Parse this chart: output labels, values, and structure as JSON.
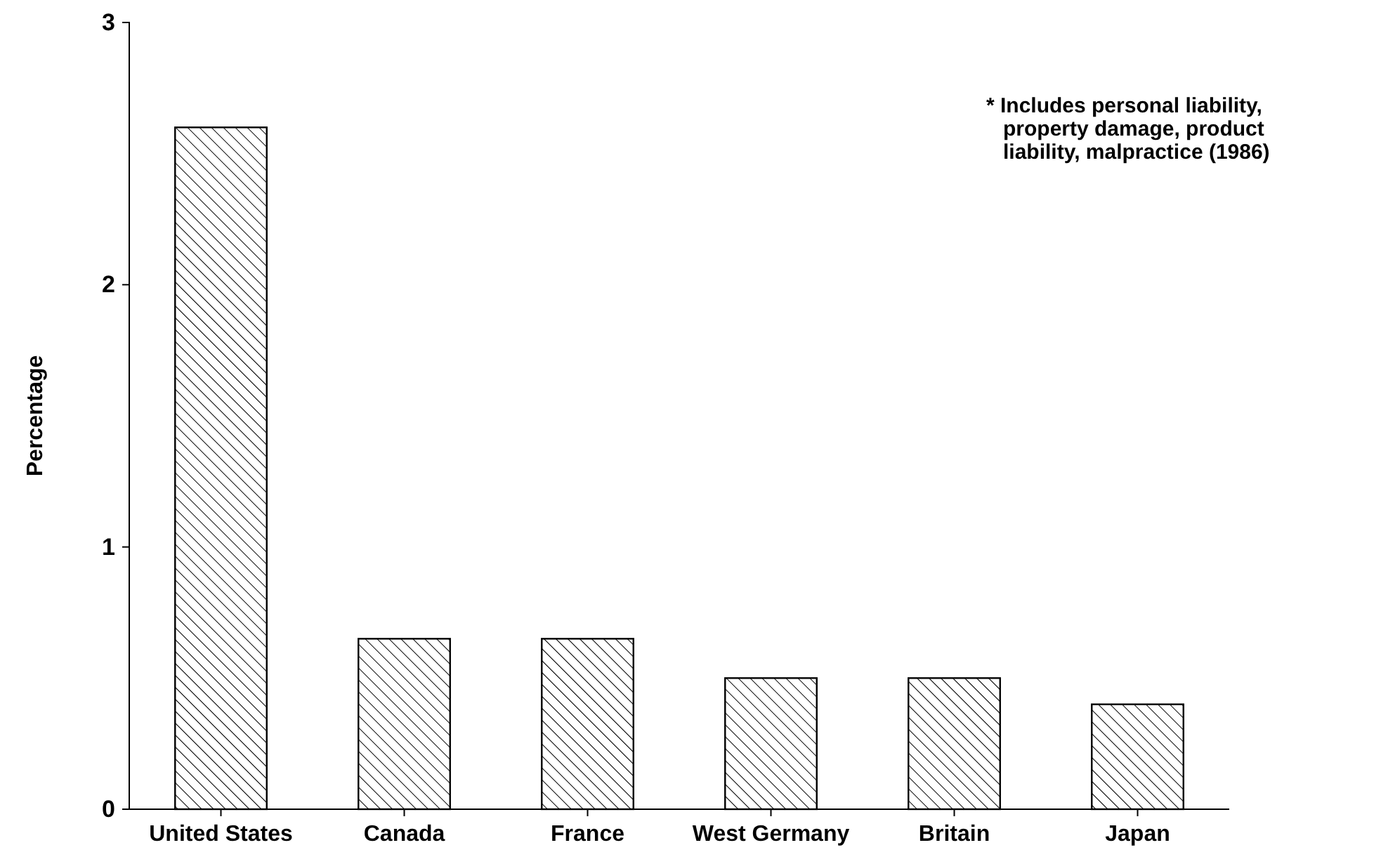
{
  "chart_data": {
    "type": "bar",
    "ylabel": "Percentage",
    "categories": [
      "United States",
      "Canada",
      "France",
      "West Germany",
      "Britain",
      "Japan"
    ],
    "values": [
      2.6,
      0.65,
      0.65,
      0.5,
      0.5,
      0.4
    ],
    "color": "#000000",
    "ylim": [
      0,
      3
    ],
    "yticks": [
      0,
      1,
      2,
      3
    ],
    "grid": false,
    "annotations": [
      "* Includes personal liability,\nproperty damage, product\nliability, malpractice (1986)"
    ]
  }
}
